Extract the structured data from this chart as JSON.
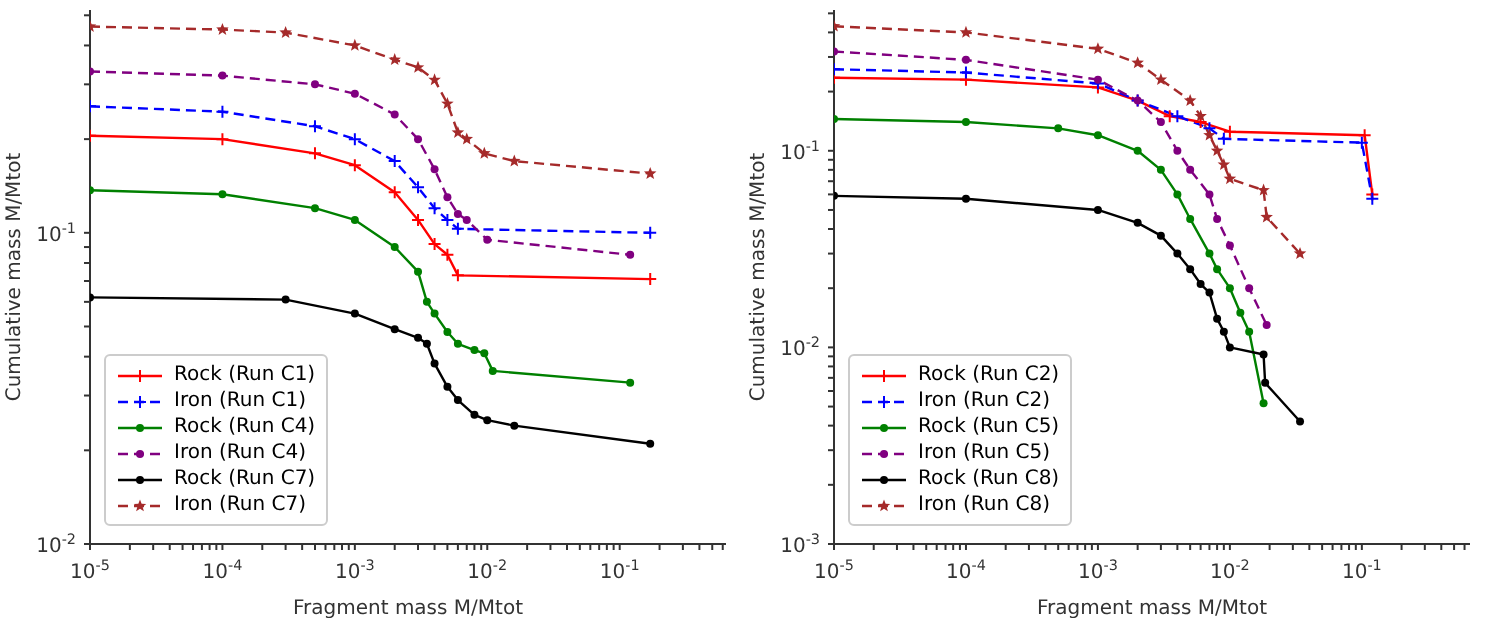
{
  "chart_data": [
    {
      "type": "line",
      "xlabel": "Fragment mass M/Mtot",
      "ylabel": "Cumulative mass M/Mtot",
      "log": "xy",
      "legend": "bottom left",
      "xlim": [
        1e-05,
        0.635
      ],
      "ylim": [
        0.01,
        0.52
      ],
      "xticks": [
        {
          "value": 1e-05,
          "label": "10$^{-5}$"
        },
        {
          "value": 2e-05,
          "label": null
        },
        {
          "value": 3e-05,
          "label": null
        },
        {
          "value": 4e-05,
          "label": null
        },
        {
          "value": 5e-05,
          "label": null
        },
        {
          "value": 6e-05,
          "label": null
        },
        {
          "value": 7e-05,
          "label": null
        },
        {
          "value": 8e-05,
          "label": null
        },
        {
          "value": 9e-05,
          "label": null
        },
        {
          "value": 0.0001,
          "label": "10$^{-4}$"
        },
        {
          "value": 0.0002,
          "label": null
        },
        {
          "value": 0.0003,
          "label": null
        },
        {
          "value": 0.0004,
          "label": null
        },
        {
          "value": 0.0005,
          "label": null
        },
        {
          "value": 0.0006,
          "label": null
        },
        {
          "value": 0.0007,
          "label": null
        },
        {
          "value": 0.0008,
          "label": null
        },
        {
          "value": 0.0009,
          "label": null
        },
        {
          "value": 0.001,
          "label": "10$^{-3}$"
        },
        {
          "value": 0.002,
          "label": null
        },
        {
          "value": 0.003,
          "label": null
        },
        {
          "value": 0.004,
          "label": null
        },
        {
          "value": 0.005,
          "label": null
        },
        {
          "value": 0.006,
          "label": null
        },
        {
          "value": 0.007,
          "label": null
        },
        {
          "value": 0.008,
          "label": null
        },
        {
          "value": 0.009,
          "label": null
        },
        {
          "value": 0.01,
          "label": "10$^{-2}$"
        },
        {
          "value": 0.02,
          "label": null
        },
        {
          "value": 0.03,
          "label": null
        },
        {
          "value": 0.04,
          "label": null
        },
        {
          "value": 0.05,
          "label": null
        },
        {
          "value": 0.06,
          "label": null
        },
        {
          "value": 0.07,
          "label": null
        },
        {
          "value": 0.08,
          "label": null
        },
        {
          "value": 0.09,
          "label": null
        },
        {
          "value": 0.1,
          "label": "10$^{-1}$"
        },
        {
          "value": 0.2,
          "label": null
        },
        {
          "value": 0.3,
          "label": null
        },
        {
          "value": 0.4,
          "label": null
        },
        {
          "value": 0.5,
          "label": null
        },
        {
          "value": 0.6,
          "label": null
        }
      ],
      "yticks": [
        {
          "value": 0.01,
          "label": "10$^{-2}$"
        },
        {
          "value": 0.02,
          "label": null
        },
        {
          "value": 0.03,
          "label": null
        },
        {
          "value": 0.04,
          "label": null
        },
        {
          "value": 0.05,
          "label": null
        },
        {
          "value": 0.06,
          "label": null
        },
        {
          "value": 0.07,
          "label": null
        },
        {
          "value": 0.08,
          "label": null
        },
        {
          "value": 0.09,
          "label": null
        },
        {
          "value": 0.1,
          "label": "10$^{-1}$"
        },
        {
          "value": 0.2,
          "label": null
        },
        {
          "value": 0.3,
          "label": null
        },
        {
          "value": 0.4,
          "label": null
        },
        {
          "value": 0.5,
          "label": null
        }
      ],
      "series": [
        {
          "name": "Rock (Run C1)",
          "color": "#ff0000",
          "marker": "cross",
          "line_style": "solid",
          "x": [
            1e-05,
            0.0001,
            0.0005,
            0.001,
            0.002,
            0.003,
            0.004,
            0.005,
            0.006,
            0.17
          ],
          "values": [
            0.205,
            0.2,
            0.18,
            0.165,
            0.135,
            0.11,
            0.092,
            0.085,
            0.073,
            0.071
          ]
        },
        {
          "name": "Iron (Run C1)",
          "color": "#0000ff",
          "marker": "cross",
          "line_style": "dashed",
          "x": [
            1e-05,
            0.0001,
            0.0005,
            0.001,
            0.002,
            0.003,
            0.004,
            0.005,
            0.006,
            0.17
          ],
          "values": [
            0.255,
            0.245,
            0.22,
            0.2,
            0.17,
            0.14,
            0.12,
            0.11,
            0.103,
            0.1
          ]
        },
        {
          "name": "Rock (Run C4)",
          "color": "#008000",
          "marker": "circle",
          "line_style": "solid",
          "x": [
            1e-05,
            0.0001,
            0.0005,
            0.001,
            0.002,
            0.003,
            0.0035,
            0.004,
            0.005,
            0.006,
            0.008,
            0.0095,
            0.011,
            0.12
          ],
          "values": [
            0.137,
            0.133,
            0.12,
            0.11,
            0.09,
            0.075,
            0.06,
            0.055,
            0.048,
            0.044,
            0.042,
            0.041,
            0.036,
            0.033
          ]
        },
        {
          "name": "Iron (Run C4)",
          "color": "#800080",
          "marker": "circle",
          "line_style": "dashed",
          "x": [
            1e-05,
            0.0001,
            0.0005,
            0.001,
            0.002,
            0.003,
            0.004,
            0.005,
            0.006,
            0.007,
            0.01,
            0.12
          ],
          "values": [
            0.33,
            0.32,
            0.3,
            0.28,
            0.24,
            0.2,
            0.16,
            0.13,
            0.115,
            0.11,
            0.095,
            0.085
          ]
        },
        {
          "name": "Rock (Run C7)",
          "color": "#000000",
          "marker": "circle",
          "line_style": "solid",
          "x": [
            1e-05,
            0.0003,
            0.001,
            0.002,
            0.003,
            0.0035,
            0.004,
            0.005,
            0.006,
            0.008,
            0.01,
            0.016,
            0.17
          ],
          "values": [
            0.062,
            0.061,
            0.055,
            0.049,
            0.046,
            0.044,
            0.038,
            0.032,
            0.029,
            0.026,
            0.025,
            0.024,
            0.021
          ]
        },
        {
          "name": "Iron (Run C7)",
          "color": "#a52a2a",
          "marker": "star",
          "line_style": "dashed",
          "x": [
            1e-05,
            0.0001,
            0.0003,
            0.001,
            0.002,
            0.003,
            0.004,
            0.005,
            0.006,
            0.007,
            0.0095,
            0.016,
            0.17
          ],
          "values": [
            0.46,
            0.45,
            0.44,
            0.4,
            0.36,
            0.34,
            0.31,
            0.26,
            0.21,
            0.2,
            0.18,
            0.17,
            0.155
          ]
        }
      ]
    },
    {
      "type": "line",
      "xlabel": "Fragment mass M/Mtot",
      "ylabel": "Cumulative mass M/Mtot",
      "log": "xy",
      "legend": "bottom left",
      "xlim": [
        1e-05,
        0.66
      ],
      "ylim": [
        0.001,
        0.52
      ],
      "xticks": [
        {
          "value": 1e-05,
          "label": "10$^{-5}$"
        },
        {
          "value": 2e-05,
          "label": null
        },
        {
          "value": 3e-05,
          "label": null
        },
        {
          "value": 4e-05,
          "label": null
        },
        {
          "value": 5e-05,
          "label": null
        },
        {
          "value": 6e-05,
          "label": null
        },
        {
          "value": 7e-05,
          "label": null
        },
        {
          "value": 8e-05,
          "label": null
        },
        {
          "value": 9e-05,
          "label": null
        },
        {
          "value": 0.0001,
          "label": "10$^{-4}$"
        },
        {
          "value": 0.0002,
          "label": null
        },
        {
          "value": 0.0003,
          "label": null
        },
        {
          "value": 0.0004,
          "label": null
        },
        {
          "value": 0.0005,
          "label": null
        },
        {
          "value": 0.0006,
          "label": null
        },
        {
          "value": 0.0007,
          "label": null
        },
        {
          "value": 0.0008,
          "label": null
        },
        {
          "value": 0.0009,
          "label": null
        },
        {
          "value": 0.001,
          "label": "10$^{-3}$"
        },
        {
          "value": 0.002,
          "label": null
        },
        {
          "value": 0.003,
          "label": null
        },
        {
          "value": 0.004,
          "label": null
        },
        {
          "value": 0.005,
          "label": null
        },
        {
          "value": 0.006,
          "label": null
        },
        {
          "value": 0.007,
          "label": null
        },
        {
          "value": 0.008,
          "label": null
        },
        {
          "value": 0.009,
          "label": null
        },
        {
          "value": 0.01,
          "label": "10$^{-2}$"
        },
        {
          "value": 0.02,
          "label": null
        },
        {
          "value": 0.03,
          "label": null
        },
        {
          "value": 0.04,
          "label": null
        },
        {
          "value": 0.05,
          "label": null
        },
        {
          "value": 0.06,
          "label": null
        },
        {
          "value": 0.07,
          "label": null
        },
        {
          "value": 0.08,
          "label": null
        },
        {
          "value": 0.09,
          "label": null
        },
        {
          "value": 0.1,
          "label": "10$^{-1}$"
        },
        {
          "value": 0.2,
          "label": null
        },
        {
          "value": 0.3,
          "label": null
        },
        {
          "value": 0.4,
          "label": null
        },
        {
          "value": 0.5,
          "label": null
        },
        {
          "value": 0.6,
          "label": null
        }
      ],
      "yticks": [
        {
          "value": 0.001,
          "label": "10$^{-3}$"
        },
        {
          "value": 0.002,
          "label": null
        },
        {
          "value": 0.003,
          "label": null
        },
        {
          "value": 0.004,
          "label": null
        },
        {
          "value": 0.005,
          "label": null
        },
        {
          "value": 0.006,
          "label": null
        },
        {
          "value": 0.007,
          "label": null
        },
        {
          "value": 0.008,
          "label": null
        },
        {
          "value": 0.009,
          "label": null
        },
        {
          "value": 0.01,
          "label": "10$^{-2}$"
        },
        {
          "value": 0.02,
          "label": null
        },
        {
          "value": 0.03,
          "label": null
        },
        {
          "value": 0.04,
          "label": null
        },
        {
          "value": 0.05,
          "label": null
        },
        {
          "value": 0.06,
          "label": null
        },
        {
          "value": 0.07,
          "label": null
        },
        {
          "value": 0.08,
          "label": null
        },
        {
          "value": 0.09,
          "label": null
        },
        {
          "value": 0.1,
          "label": "10$^{-1}$"
        },
        {
          "value": 0.2,
          "label": null
        },
        {
          "value": 0.3,
          "label": null
        },
        {
          "value": 0.4,
          "label": null
        },
        {
          "value": 0.5,
          "label": null
        }
      ],
      "series": [
        {
          "name": "Rock (Run C2)",
          "color": "#ff0000",
          "marker": "cross",
          "line_style": "solid",
          "x": [
            1e-05,
            0.0001,
            0.001,
            0.002,
            0.0035,
            0.006,
            0.01,
            0.105,
            0.12
          ],
          "values": [
            0.235,
            0.23,
            0.21,
            0.18,
            0.15,
            0.14,
            0.125,
            0.12,
            0.06
          ]
        },
        {
          "name": "Iron (Run C2)",
          "color": "#0000ff",
          "marker": "cross",
          "line_style": "dashed",
          "x": [
            1e-05,
            0.0001,
            0.001,
            0.002,
            0.004,
            0.007,
            0.009,
            0.1,
            0.12
          ],
          "values": [
            0.26,
            0.25,
            0.22,
            0.18,
            0.15,
            0.13,
            0.115,
            0.11,
            0.057
          ]
        },
        {
          "name": "Rock (Run C5)",
          "color": "#008000",
          "marker": "circle",
          "line_style": "solid",
          "x": [
            1e-05,
            0.0001,
            0.0005,
            0.001,
            0.002,
            0.003,
            0.004,
            0.005,
            0.007,
            0.008,
            0.01,
            0.012,
            0.014,
            0.018
          ],
          "values": [
            0.145,
            0.14,
            0.13,
            0.12,
            0.1,
            0.08,
            0.06,
            0.045,
            0.03,
            0.025,
            0.02,
            0.015,
            0.012,
            0.0052
          ]
        },
        {
          "name": "Iron (Run C5)",
          "color": "#800080",
          "marker": "circle",
          "line_style": "dashed",
          "x": [
            1e-05,
            0.0001,
            0.001,
            0.002,
            0.003,
            0.004,
            0.005,
            0.007,
            0.008,
            0.01,
            0.014,
            0.019
          ],
          "values": [
            0.32,
            0.29,
            0.23,
            0.18,
            0.14,
            0.1,
            0.08,
            0.06,
            0.045,
            0.033,
            0.02,
            0.013
          ]
        },
        {
          "name": "Rock (Run C8)",
          "color": "#000000",
          "marker": "circle",
          "line_style": "solid",
          "x": [
            1e-05,
            0.0001,
            0.001,
            0.002,
            0.003,
            0.004,
            0.005,
            0.006,
            0.007,
            0.008,
            0.009,
            0.01,
            0.018,
            0.0185,
            0.034
          ],
          "values": [
            0.059,
            0.057,
            0.05,
            0.043,
            0.037,
            0.03,
            0.025,
            0.021,
            0.019,
            0.014,
            0.012,
            0.01,
            0.0092,
            0.0066,
            0.0042
          ]
        },
        {
          "name": "Iron (Run C8)",
          "color": "#a52a2a",
          "marker": "star",
          "line_style": "dashed",
          "x": [
            1e-05,
            0.0001,
            0.001,
            0.002,
            0.003,
            0.005,
            0.006,
            0.007,
            0.008,
            0.009,
            0.01,
            0.018,
            0.019,
            0.034
          ],
          "values": [
            0.43,
            0.4,
            0.33,
            0.28,
            0.23,
            0.18,
            0.15,
            0.12,
            0.1,
            0.085,
            0.072,
            0.063,
            0.046,
            0.03
          ]
        }
      ]
    }
  ]
}
